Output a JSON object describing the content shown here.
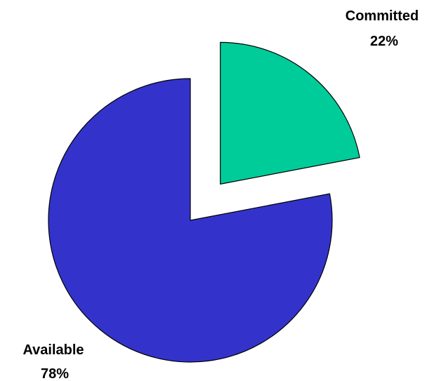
{
  "chart_data": {
    "type": "pie",
    "title": "",
    "slices": [
      {
        "label": "Committed",
        "percent_label": "22%",
        "value": 22,
        "color": "#00CC99",
        "exploded": true
      },
      {
        "label": "Available",
        "percent_label": "78%",
        "value": 78,
        "color": "#3333CC",
        "exploded": false
      }
    ],
    "legend": "none"
  }
}
